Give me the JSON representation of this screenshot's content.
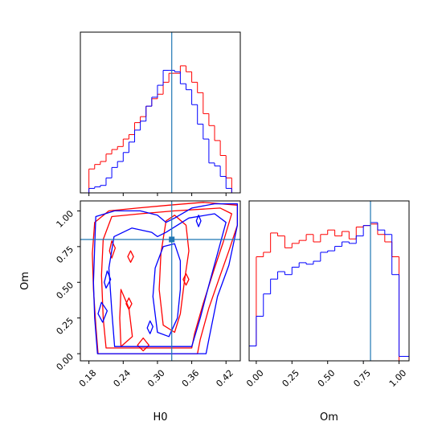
{
  "chart_data": {
    "type": "corner",
    "parameters": [
      "H0",
      "Om"
    ],
    "truth": {
      "H0": 0.325,
      "Om": 0.8
    },
    "colors": {
      "series_a": "#ff0000",
      "series_b": "#0000ff",
      "truth": "#1f77b4"
    },
    "axes": {
      "H0": {
        "label": "H0",
        "lim": [
          0.165,
          0.445
        ],
        "ticks": [
          0.18,
          0.24,
          0.3,
          0.36,
          0.42
        ],
        "ticklabels": [
          "0.18",
          "0.24",
          "0.30",
          "0.36",
          "0.42"
        ]
      },
      "Om": {
        "label": "Om",
        "lim": [
          -0.05,
          1.07
        ],
        "ticks": [
          0.0,
          0.25,
          0.5,
          0.75,
          1.0
        ],
        "ticklabels": [
          "0.00",
          "0.25",
          "0.50",
          "0.75",
          "1.00"
        ]
      }
    },
    "histograms": {
      "H0": {
        "bin_edges": [
          0.165,
          0.18,
          0.19,
          0.2,
          0.21,
          0.22,
          0.23,
          0.24,
          0.25,
          0.26,
          0.27,
          0.28,
          0.29,
          0.3,
          0.31,
          0.32,
          0.33,
          0.34,
          0.35,
          0.36,
          0.37,
          0.38,
          0.39,
          0.4,
          0.41,
          0.42,
          0.43,
          0.445
        ],
        "series_a": [
          0,
          0.16,
          0.19,
          0.21,
          0.26,
          0.29,
          0.31,
          0.36,
          0.39,
          0.47,
          0.51,
          0.58,
          0.63,
          0.66,
          0.74,
          0.8,
          0.8,
          0.85,
          0.81,
          0.74,
          0.67,
          0.53,
          0.45,
          0.35,
          0.25,
          0.1,
          0
        ],
        "series_b": [
          0,
          0.03,
          0.04,
          0.05,
          0.1,
          0.17,
          0.21,
          0.27,
          0.34,
          0.42,
          0.48,
          0.58,
          0.64,
          0.72,
          0.82,
          0.82,
          0.81,
          0.73,
          0.69,
          0.59,
          0.46,
          0.36,
          0.2,
          0.18,
          0.11,
          0.03,
          0
        ]
      },
      "Om": {
        "bin_edges": [
          -0.05,
          0.0,
          0.05,
          0.1,
          0.15,
          0.2,
          0.25,
          0.3,
          0.35,
          0.4,
          0.45,
          0.5,
          0.55,
          0.6,
          0.65,
          0.7,
          0.75,
          0.8,
          0.85,
          0.9,
          0.95,
          1.0,
          1.07
        ],
        "series_a": [
          0.1,
          0.7,
          0.73,
          0.86,
          0.84,
          0.76,
          0.79,
          0.81,
          0.85,
          0.8,
          0.85,
          0.88,
          0.84,
          0.87,
          0.82,
          0.9,
          0.91,
          0.92,
          0.85,
          0.8,
          0.7,
          0.0
        ],
        "series_b": [
          0.1,
          0.3,
          0.45,
          0.55,
          0.6,
          0.58,
          0.63,
          0.66,
          0.65,
          0.67,
          0.73,
          0.74,
          0.77,
          0.8,
          0.79,
          0.84,
          0.91,
          0.93,
          0.88,
          0.85,
          0.58,
          0.03
        ]
      }
    },
    "contours": {
      "series_a": [
        [
          [
            0.196,
            0.0
          ],
          [
            0.192,
            0.2
          ],
          [
            0.188,
            0.45
          ],
          [
            0.186,
            0.7
          ],
          [
            0.19,
            0.92
          ],
          [
            0.215,
            1.0
          ],
          [
            0.265,
            1.02
          ],
          [
            0.32,
            1.04
          ],
          [
            0.38,
            1.06
          ],
          [
            0.44,
            1.04
          ],
          [
            0.44,
            0.9
          ],
          [
            0.425,
            0.72
          ],
          [
            0.41,
            0.55
          ],
          [
            0.39,
            0.32
          ],
          [
            0.375,
            0.1
          ],
          [
            0.37,
            0.0
          ]
        ],
        [
          [
            0.21,
            0.04
          ],
          [
            0.205,
            0.25
          ],
          [
            0.202,
            0.55
          ],
          [
            0.205,
            0.8
          ],
          [
            0.22,
            0.96
          ],
          [
            0.27,
            0.98
          ],
          [
            0.33,
            1.0
          ],
          [
            0.41,
            1.02
          ],
          [
            0.43,
            0.98
          ],
          [
            0.415,
            0.78
          ],
          [
            0.4,
            0.6
          ],
          [
            0.38,
            0.35
          ],
          [
            0.365,
            0.14
          ],
          [
            0.36,
            0.04
          ]
        ],
        [
          [
            0.31,
            0.2
          ],
          [
            0.303,
            0.45
          ],
          [
            0.306,
            0.7
          ],
          [
            0.315,
            0.93
          ],
          [
            0.33,
            0.97
          ],
          [
            0.35,
            0.9
          ],
          [
            0.355,
            0.72
          ],
          [
            0.347,
            0.5
          ],
          [
            0.34,
            0.28
          ],
          [
            0.33,
            0.15
          ]
        ],
        [
          [
            0.236,
            0.05
          ],
          [
            0.234,
            0.25
          ],
          [
            0.236,
            0.45
          ],
          [
            0.25,
            0.32
          ],
          [
            0.256,
            0.12
          ]
        ],
        [
          [
            0.265,
            0.06
          ],
          [
            0.275,
            0.02
          ],
          [
            0.285,
            0.06
          ],
          [
            0.275,
            0.11
          ]
        ],
        [
          [
            0.216,
            0.72
          ],
          [
            0.22,
            0.79
          ],
          [
            0.226,
            0.74
          ],
          [
            0.22,
            0.67
          ]
        ],
        [
          [
            0.245,
            0.35
          ],
          [
            0.25,
            0.39
          ],
          [
            0.255,
            0.35
          ],
          [
            0.25,
            0.31
          ]
        ],
        [
          [
            0.345,
            0.52
          ],
          [
            0.35,
            0.56
          ],
          [
            0.355,
            0.52
          ],
          [
            0.35,
            0.48
          ]
        ],
        [
          [
            0.248,
            0.68
          ],
          [
            0.253,
            0.72
          ],
          [
            0.258,
            0.68
          ],
          [
            0.253,
            0.64
          ]
        ]
      ],
      "series_b": [
        [
          [
            0.195,
            0.0
          ],
          [
            0.19,
            0.25
          ],
          [
            0.188,
            0.5
          ],
          [
            0.19,
            0.75
          ],
          [
            0.192,
            0.96
          ],
          [
            0.225,
            1.0
          ],
          [
            0.27,
            1.0
          ],
          [
            0.3,
            0.97
          ],
          [
            0.315,
            0.92
          ],
          [
            0.33,
            0.95
          ],
          [
            0.36,
            1.02
          ],
          [
            0.4,
            1.05
          ],
          [
            0.44,
            1.05
          ],
          [
            0.44,
            0.9
          ],
          [
            0.425,
            0.62
          ],
          [
            0.405,
            0.4
          ],
          [
            0.39,
            0.1
          ],
          [
            0.385,
            0.0
          ]
        ],
        [
          [
            0.225,
            0.05
          ],
          [
            0.22,
            0.3
          ],
          [
            0.215,
            0.6
          ],
          [
            0.224,
            0.82
          ],
          [
            0.255,
            0.88
          ],
          [
            0.29,
            0.85
          ],
          [
            0.3,
            0.82
          ],
          [
            0.315,
            0.85
          ],
          [
            0.335,
            0.9
          ],
          [
            0.355,
            0.95
          ],
          [
            0.4,
            0.98
          ],
          [
            0.42,
            0.92
          ],
          [
            0.405,
            0.7
          ],
          [
            0.39,
            0.48
          ],
          [
            0.375,
            0.25
          ],
          [
            0.36,
            0.05
          ]
        ],
        [
          [
            0.3,
            0.15
          ],
          [
            0.292,
            0.4
          ],
          [
            0.296,
            0.6
          ],
          [
            0.31,
            0.75
          ],
          [
            0.33,
            0.77
          ],
          [
            0.34,
            0.65
          ],
          [
            0.34,
            0.45
          ],
          [
            0.335,
            0.25
          ],
          [
            0.32,
            0.12
          ]
        ],
        [
          [
            0.196,
            0.28
          ],
          [
            0.202,
            0.36
          ],
          [
            0.212,
            0.3
          ],
          [
            0.204,
            0.22
          ]
        ],
        [
          [
            0.207,
            0.5
          ],
          [
            0.212,
            0.58
          ],
          [
            0.218,
            0.52
          ],
          [
            0.21,
            0.46
          ]
        ],
        [
          [
            0.282,
            0.18
          ],
          [
            0.287,
            0.23
          ],
          [
            0.292,
            0.19
          ],
          [
            0.287,
            0.14
          ]
        ],
        [
          [
            0.368,
            0.93
          ],
          [
            0.372,
            0.97
          ],
          [
            0.376,
            0.93
          ],
          [
            0.372,
            0.89
          ]
        ]
      ]
    }
  }
}
